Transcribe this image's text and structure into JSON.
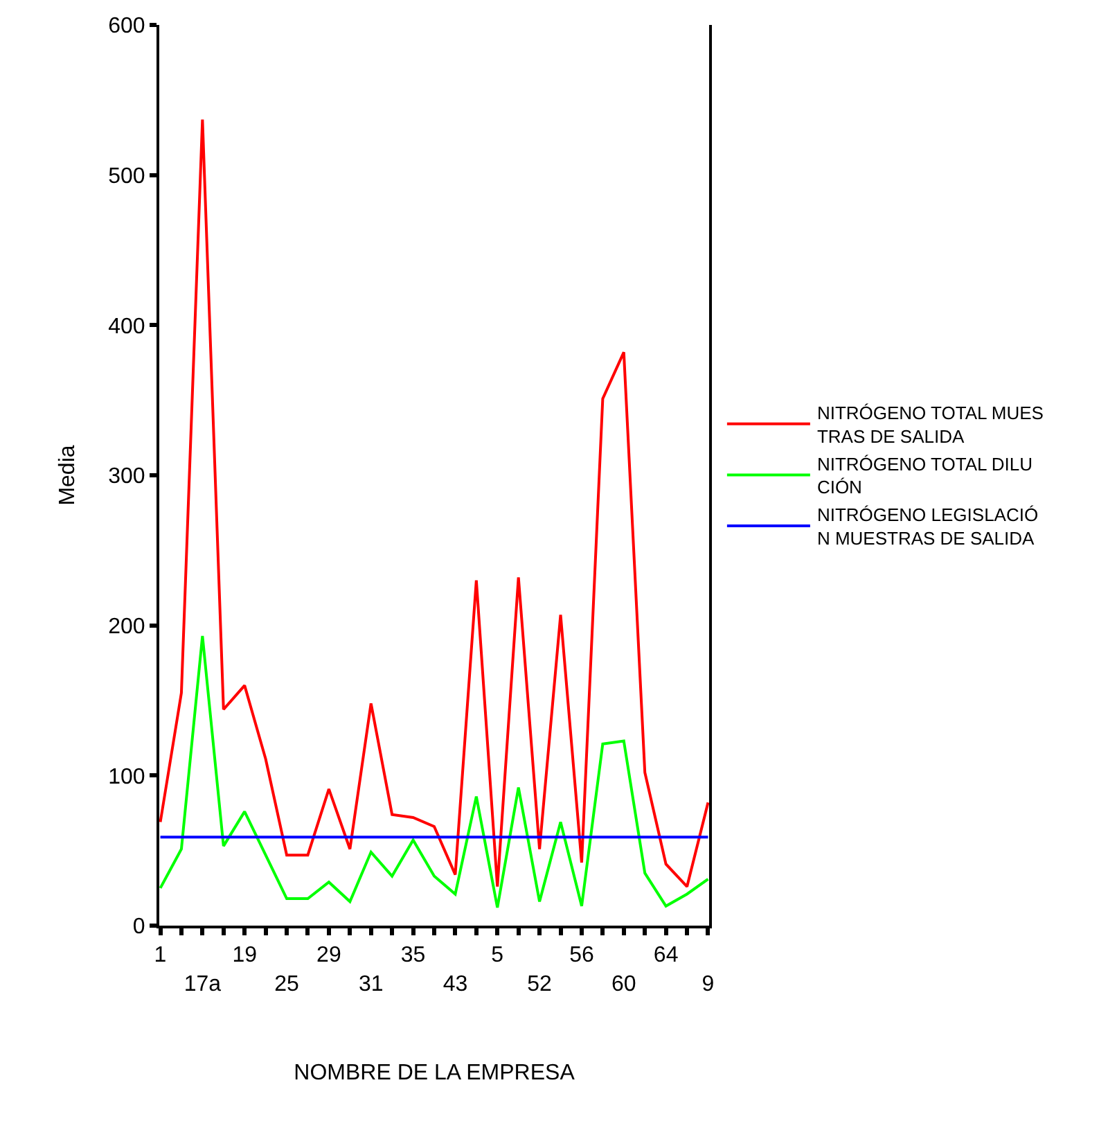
{
  "chart_data": {
    "type": "line",
    "xlabel": "NOMBRE DE LA EMPRESA",
    "ylabel": "Media",
    "categories": [
      "1",
      null,
      "17a",
      null,
      "19",
      null,
      "25",
      null,
      "29",
      null,
      "31",
      null,
      "35",
      null,
      "43",
      null,
      "5",
      null,
      "52",
      null,
      "56",
      null,
      "60",
      null,
      "64",
      null,
      "9"
    ],
    "series": [
      {
        "name": "NITRÓGENO TOTAL MUESTRAS DE SALIDA",
        "color": "#ff0000",
        "values": [
          69,
          155,
          537,
          144,
          160,
          111,
          47,
          47,
          91,
          51,
          148,
          74,
          72,
          66,
          34,
          230,
          26,
          232,
          51,
          207,
          42,
          351,
          382,
          102,
          41,
          26,
          82
        ]
      },
      {
        "name": "NITRÓGENO TOTAL DILUCIÓN",
        "color": "#00ff00",
        "values": [
          25,
          51,
          193,
          53,
          76,
          47,
          18,
          18,
          29,
          16,
          49,
          33,
          57,
          33,
          21,
          86,
          12,
          92,
          16,
          69,
          13,
          121,
          123,
          35,
          13,
          21,
          31
        ]
      },
      {
        "name": "NITRÓGENO LEGISLACIÓN MUESTRAS DE SALIDA",
        "color": "#0000ff",
        "values": [
          59,
          59,
          59,
          59,
          59,
          59,
          59,
          59,
          59,
          59,
          59,
          59,
          59,
          59,
          59,
          59,
          59,
          59,
          59,
          59,
          59,
          59,
          59,
          59,
          59,
          59,
          59
        ]
      }
    ],
    "ylim": [
      0,
      600
    ],
    "yticks": [
      0,
      100,
      200,
      300,
      400,
      500,
      600
    ],
    "legend": "right",
    "marker": "none",
    "line_style": "solid"
  }
}
